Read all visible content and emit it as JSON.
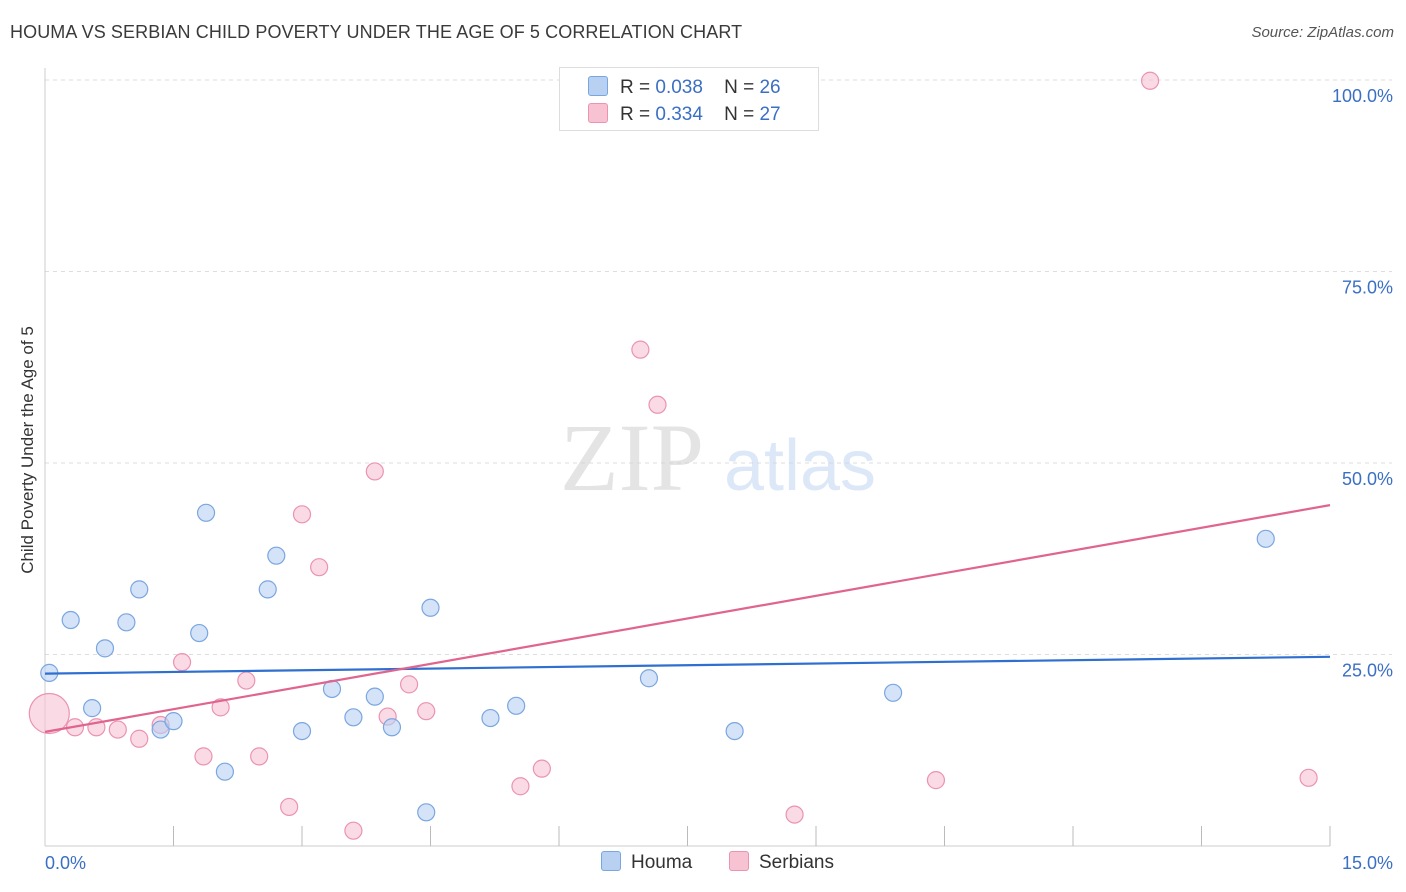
{
  "title": "HOUMA VS SERBIAN CHILD POVERTY UNDER THE AGE OF 5 CORRELATION CHART",
  "source": "Source: ZipAtlas.com",
  "watermark": {
    "zip": "ZIP",
    "atlas": "atlas"
  },
  "legend_top": [
    {
      "r_label": "R =",
      "r_value": "0.038",
      "n_label": "N =",
      "n_value": "26"
    },
    {
      "r_label": "R =",
      "r_value": "0.334",
      "n_label": "N =",
      "n_value": "27"
    }
  ],
  "colors": {
    "houma_fill": "#b8d1f3",
    "houma_stroke": "#7aa6e0",
    "houma_line": "#2f6fcf",
    "serbians_fill": "#f7c3d3",
    "serbians_stroke": "#eb93b0",
    "serbians_line": "#e0648e",
    "tick_label": "#3a6fc4",
    "grid": "#dddddd"
  },
  "chart_data": {
    "type": "scatter",
    "title": "HOUMA VS SERBIAN CHILD POVERTY UNDER THE AGE OF 5 CORRELATION CHART",
    "xlabel": "",
    "ylabel": "Child Poverty Under the Age of 5",
    "xlim": [
      0,
      15
    ],
    "ylim": [
      0,
      100
    ],
    "x_tick_labels": [
      "0.0%",
      "15.0%"
    ],
    "y_tick_labels": [
      "25.0%",
      "50.0%",
      "75.0%",
      "100.0%"
    ],
    "y_ticks": [
      25,
      50,
      75,
      100
    ],
    "x_minor_ticks": [
      1.5,
      3.0,
      4.5,
      6.0,
      7.5,
      9.0,
      10.5,
      12.0,
      13.5,
      15.0
    ],
    "grid": true,
    "legend_position": "bottom",
    "series": [
      {
        "name": "Houma",
        "r": 0.038,
        "n": 26,
        "trend": {
          "x": [
            0,
            15
          ],
          "y": [
            22.5,
            24.7
          ]
        },
        "points": [
          {
            "x": 0.05,
            "y": 22.6
          },
          {
            "x": 0.3,
            "y": 29.5
          },
          {
            "x": 0.55,
            "y": 18.0
          },
          {
            "x": 0.7,
            "y": 25.8
          },
          {
            "x": 0.95,
            "y": 29.2
          },
          {
            "x": 1.1,
            "y": 33.5
          },
          {
            "x": 1.35,
            "y": 15.2
          },
          {
            "x": 1.5,
            "y": 16.3
          },
          {
            "x": 1.8,
            "y": 27.8
          },
          {
            "x": 1.88,
            "y": 43.5
          },
          {
            "x": 2.1,
            "y": 9.7
          },
          {
            "x": 2.6,
            "y": 33.5
          },
          {
            "x": 2.7,
            "y": 37.9
          },
          {
            "x": 3.0,
            "y": 15.0
          },
          {
            "x": 3.35,
            "y": 20.5
          },
          {
            "x": 3.6,
            "y": 16.8
          },
          {
            "x": 3.85,
            "y": 19.5
          },
          {
            "x": 4.05,
            "y": 15.5
          },
          {
            "x": 4.5,
            "y": 31.1
          },
          {
            "x": 4.45,
            "y": 4.4
          },
          {
            "x": 5.2,
            "y": 16.7
          },
          {
            "x": 5.5,
            "y": 18.3
          },
          {
            "x": 7.05,
            "y": 21.9
          },
          {
            "x": 8.05,
            "y": 15.0
          },
          {
            "x": 9.9,
            "y": 20.0
          },
          {
            "x": 14.25,
            "y": 40.1
          }
        ]
      },
      {
        "name": "Serbians",
        "r": 0.334,
        "n": 27,
        "trend": {
          "x": [
            0,
            15
          ],
          "y": [
            14.9,
            44.5
          ]
        },
        "points": [
          {
            "x": 0.05,
            "y": 17.3,
            "big": true
          },
          {
            "x": 0.35,
            "y": 15.5
          },
          {
            "x": 0.6,
            "y": 15.5
          },
          {
            "x": 0.85,
            "y": 15.2
          },
          {
            "x": 1.1,
            "y": 14.0
          },
          {
            "x": 1.35,
            "y": 15.8
          },
          {
            "x": 1.6,
            "y": 24.0
          },
          {
            "x": 1.85,
            "y": 11.7
          },
          {
            "x": 2.05,
            "y": 18.1
          },
          {
            "x": 2.35,
            "y": 21.6
          },
          {
            "x": 2.5,
            "y": 11.7
          },
          {
            "x": 2.85,
            "y": 5.1
          },
          {
            "x": 3.0,
            "y": 43.3
          },
          {
            "x": 3.2,
            "y": 36.4
          },
          {
            "x": 3.6,
            "y": 2.0
          },
          {
            "x": 3.85,
            "y": 48.9
          },
          {
            "x": 4.0,
            "y": 16.9
          },
          {
            "x": 4.25,
            "y": 21.1
          },
          {
            "x": 4.45,
            "y": 17.6
          },
          {
            "x": 5.55,
            "y": 7.8
          },
          {
            "x": 5.8,
            "y": 10.1
          },
          {
            "x": 6.95,
            "y": 64.8
          },
          {
            "x": 7.15,
            "y": 57.6
          },
          {
            "x": 8.75,
            "y": 4.1
          },
          {
            "x": 10.4,
            "y": 8.6
          },
          {
            "x": 12.9,
            "y": 99.9
          },
          {
            "x": 14.75,
            "y": 8.9
          }
        ]
      }
    ]
  }
}
